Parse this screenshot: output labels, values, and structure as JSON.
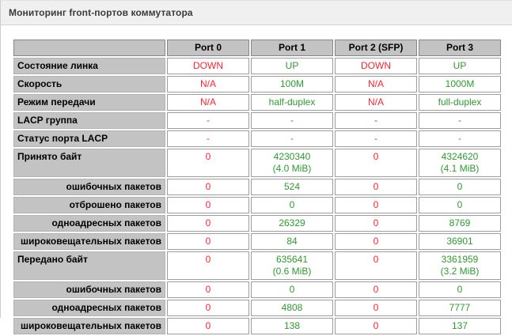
{
  "panel": {
    "title": "Мониторинг front-портов коммутатора"
  },
  "colors": {
    "up": "#2e9b2e",
    "down": "#ff222f"
  },
  "table": {
    "port_statuses": [
      "down",
      "up",
      "down",
      "up"
    ],
    "headers": {
      "corner": "",
      "port0": "Port 0",
      "port1": "Port 1",
      "port2": "Port 2 (SFP)",
      "port3": "Port 3"
    },
    "rows": [
      {
        "label": "Состояние линка",
        "values": [
          "DOWN",
          "UP",
          "DOWN",
          "UP"
        ]
      },
      {
        "label": "Скорость",
        "values": [
          "N/A",
          "100M",
          "N/A",
          "1000M"
        ]
      },
      {
        "label": "Режим передачи",
        "values": [
          "N/A",
          "half-duplex",
          "N/A",
          "full-duplex"
        ]
      },
      {
        "label": "LACP группа",
        "values": [
          "-",
          "-",
          "-",
          "-"
        ]
      },
      {
        "label": "Статус порта LACP",
        "values": [
          "-",
          "-",
          "-",
          "-"
        ]
      },
      {
        "label": "Принято байт",
        "values": [
          "0",
          "4230340\n(4.0 MiB)",
          "0",
          "4324620\n(4.1 MiB)"
        ]
      },
      {
        "label": "ошибочных пакетов",
        "values": [
          "0",
          "524",
          "0",
          "0"
        ]
      },
      {
        "label": "отброшено пакетов",
        "values": [
          "0",
          "0",
          "0",
          "0"
        ]
      },
      {
        "label": "одноадресных пакетов",
        "values": [
          "0",
          "26329",
          "0",
          "8769"
        ]
      },
      {
        "label": "широковещательных пакетов",
        "values": [
          "0",
          "84",
          "0",
          "36901"
        ]
      },
      {
        "label": "Передано байт",
        "values": [
          "0",
          "635641\n(0.6 MiB)",
          "0",
          "3361959\n(3.2 MiB)"
        ]
      },
      {
        "label": "ошибочных пакетов",
        "values": [
          "0",
          "0",
          "0",
          "0"
        ]
      },
      {
        "label": "одноадресных пакетов",
        "values": [
          "0",
          "4808",
          "0",
          "7777"
        ]
      },
      {
        "label": "широковещательных пакетов",
        "values": [
          "0",
          "138",
          "0",
          "137"
        ]
      }
    ]
  }
}
